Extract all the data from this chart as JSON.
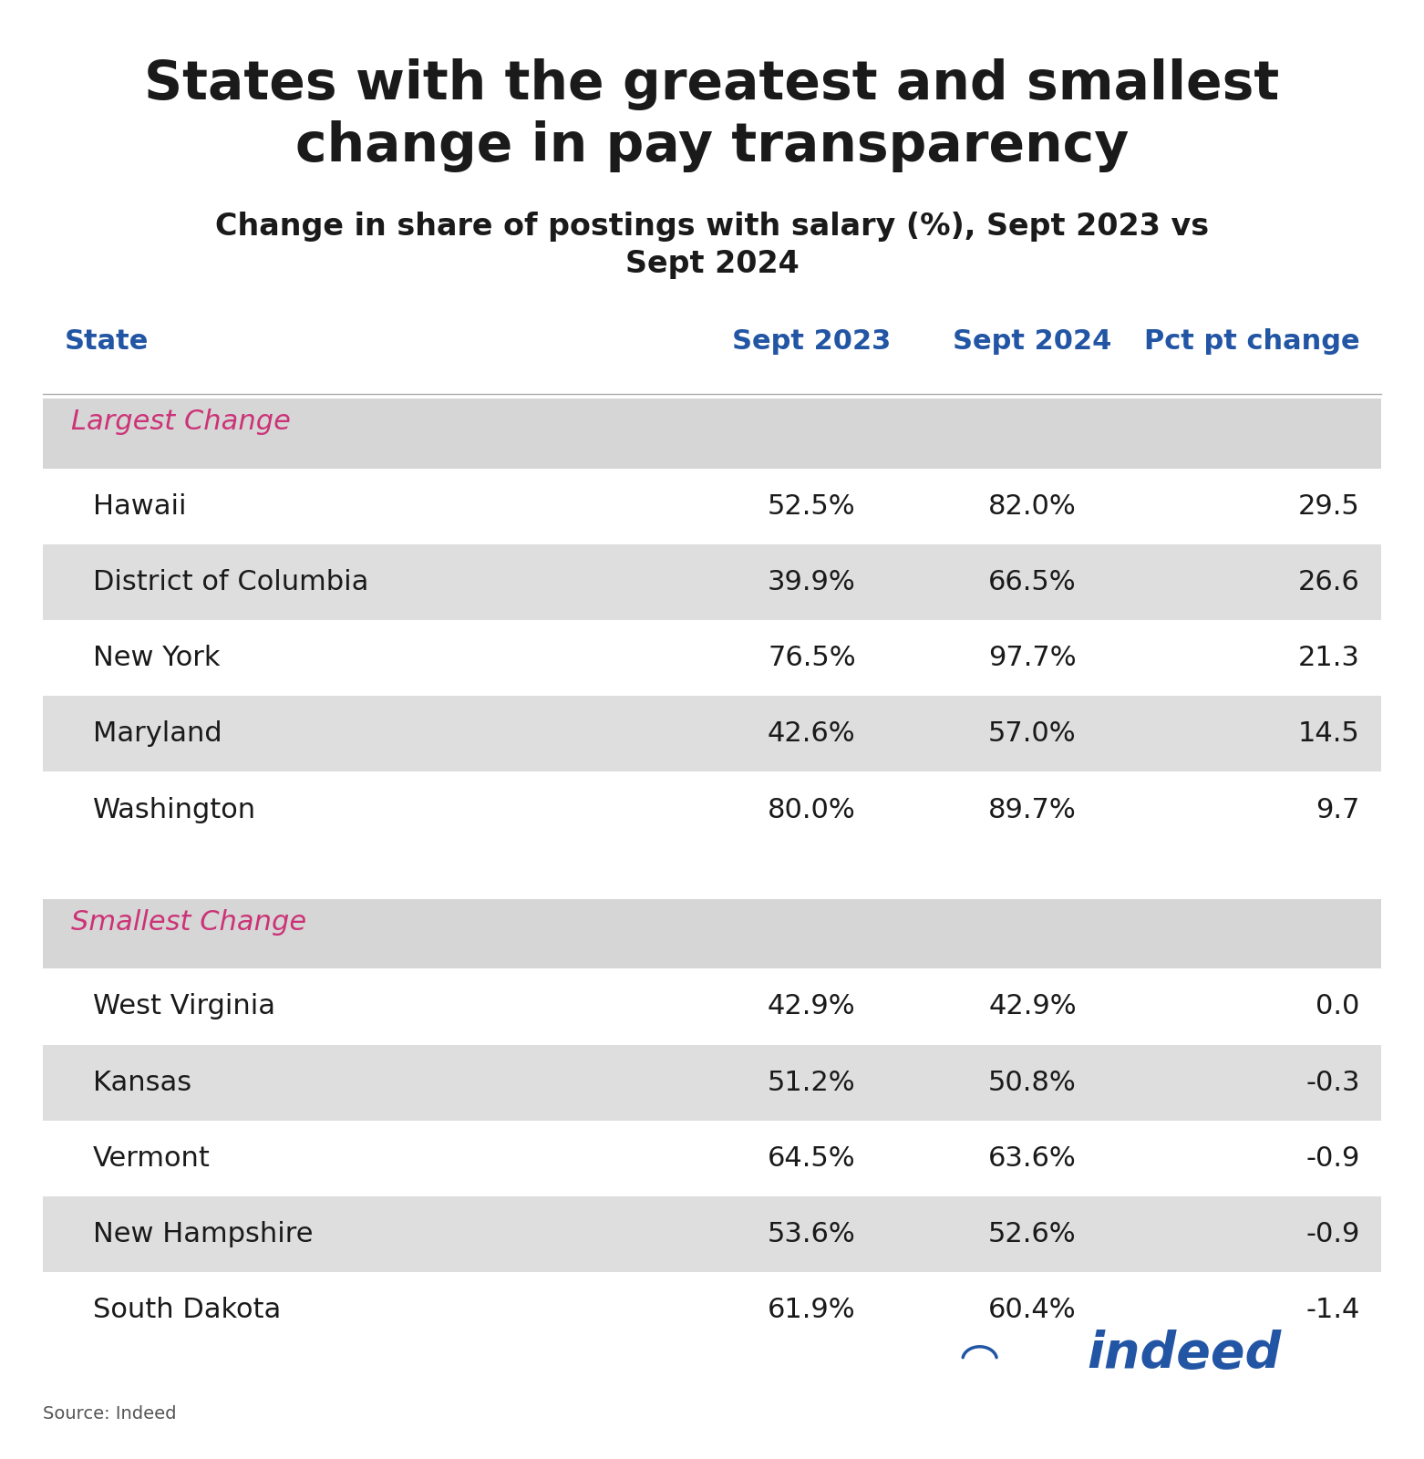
{
  "title": "States with the greatest and smallest\nchange in pay transparency",
  "subtitle": "Change in share of postings with salary (%), Sept 2023 vs\nSept 2024",
  "col_headers": [
    "State",
    "Sept 2023",
    "Sept 2024",
    "Pct pt change"
  ],
  "header_color": "#2255a4",
  "section_label_color": "#cc3377",
  "title_color": "#1a1a1a",
  "subtitle_color": "#1a1a1a",
  "sections": [
    {
      "label": "Largest Change",
      "rows": [
        {
          "state": "Hawaii",
          "sept2023": "52.5%",
          "sept2024": "82.0%",
          "change": "29.5"
        },
        {
          "state": "District of Columbia",
          "sept2023": "39.9%",
          "sept2024": "66.5%",
          "change": "26.6"
        },
        {
          "state": "New York",
          "sept2023": "76.5%",
          "sept2024": "97.7%",
          "change": "21.3"
        },
        {
          "state": "Maryland",
          "sept2023": "42.6%",
          "sept2024": "57.0%",
          "change": "14.5"
        },
        {
          "state": "Washington",
          "sept2023": "80.0%",
          "sept2024": "89.7%",
          "change": "9.7"
        }
      ]
    },
    {
      "label": "Smallest Change",
      "rows": [
        {
          "state": "West Virginia",
          "sept2023": "42.9%",
          "sept2024": "42.9%",
          "change": "0.0"
        },
        {
          "state": "Kansas",
          "sept2023": "51.2%",
          "sept2024": "50.8%",
          "change": "-0.3"
        },
        {
          "state": "Vermont",
          "sept2023": "64.5%",
          "sept2024": "63.6%",
          "change": "-0.9"
        },
        {
          "state": "New Hampshire",
          "sept2023": "53.6%",
          "sept2024": "52.6%",
          "change": "-0.9"
        },
        {
          "state": "South Dakota",
          "sept2023": "61.9%",
          "sept2024": "60.4%",
          "change": "-1.4"
        }
      ]
    }
  ],
  "shaded_row_color": "#dedede",
  "white_row_color": "#ffffff",
  "section_header_color": "#d6d6d6",
  "source_text": "Source: Indeed",
  "bg_color": "#ffffff",
  "data_fontsize": 22,
  "header_fontsize": 22,
  "title_fontsize": 42,
  "subtitle_fontsize": 24
}
